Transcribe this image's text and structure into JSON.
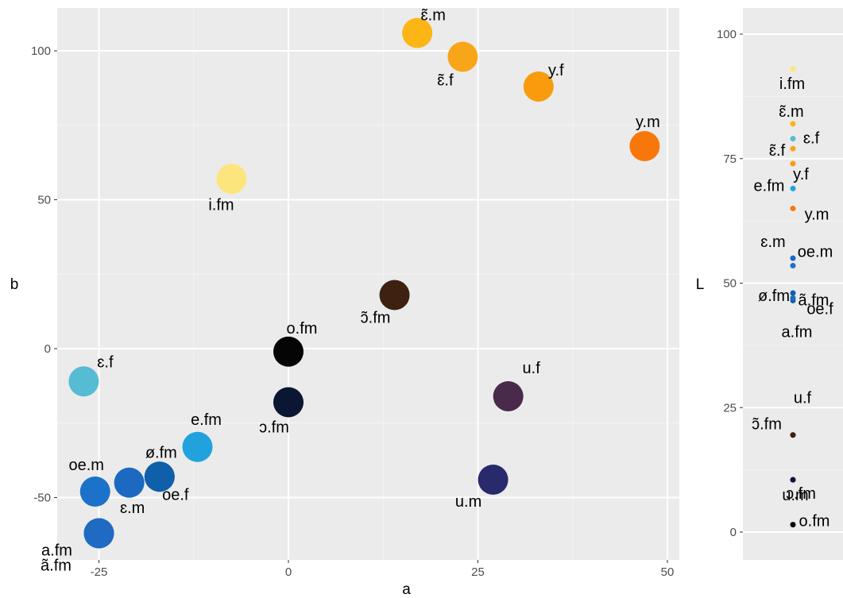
{
  "chart_data": [
    {
      "type": "scatter",
      "xlabel": "a",
      "ylabel": "b",
      "xlim": [
        -30,
        51
      ],
      "ylim": [
        -70,
        115
      ],
      "xticks": [
        -25,
        0,
        25,
        50
      ],
      "yticks": [
        -50,
        0,
        50,
        100
      ],
      "xtick_labels": [
        "-25",
        "0",
        "25",
        "50"
      ],
      "ytick_labels": [
        "-50",
        "0",
        "50",
        "100"
      ],
      "grid": true,
      "legend": "none",
      "points": [
        {
          "label": "ɛ̃.m",
          "x": 17,
          "y": 106,
          "color": "#FBB515"
        },
        {
          "label": "ɛ̃.f",
          "x": 23,
          "y": 98,
          "color": "#F9A51A"
        },
        {
          "label": "y.f",
          "x": 33,
          "y": 88,
          "color": "#F89C0E"
        },
        {
          "label": "y.m",
          "x": 47,
          "y": 68,
          "color": "#F7770B"
        },
        {
          "label": "i.fm",
          "x": -7.5,
          "y": 57,
          "color": "#FDE57E"
        },
        {
          "label": "ɔ̃.fm",
          "x": 14,
          "y": 18,
          "color": "#3E2111"
        },
        {
          "label": "o.fm",
          "x": 0,
          "y": -1,
          "color": "#050505"
        },
        {
          "label": "ɔ.fm",
          "x": 0,
          "y": -18,
          "color": "#0B1633"
        },
        {
          "label": "ɛ.f",
          "x": -27,
          "y": -11,
          "color": "#56BCD3"
        },
        {
          "label": "u.f",
          "x": 29,
          "y": -16,
          "color": "#4A2A4B"
        },
        {
          "label": "e.fm",
          "x": -12,
          "y": -33,
          "color": "#22A2DD"
        },
        {
          "label": "u.m",
          "x": 27,
          "y": -44,
          "color": "#282A6B"
        },
        {
          "label": "ø.fm",
          "x": -17,
          "y": -43,
          "color": "#0F5FAA"
        },
        {
          "label": "oe.m",
          "x": -25.5,
          "y": -48,
          "color": "#1C72C8"
        },
        {
          "label": "ɛ.m",
          "x": -21,
          "y": -45,
          "color": "#1B69C1"
        },
        {
          "label": "oe.f",
          "x": -17,
          "y": -43,
          "color": "#0F5FAA"
        },
        {
          "label": "ã.fm",
          "x": -25,
          "y": -62,
          "color": "#1F6AC3"
        },
        {
          "label": "a.fm",
          "x": -25,
          "y": -62,
          "color": "#1F6AC3"
        }
      ]
    },
    {
      "type": "scatter",
      "xlabel": "",
      "ylabel": "L",
      "ylim": [
        -5,
        105
      ],
      "yticks": [
        0,
        25,
        50,
        75,
        100
      ],
      "ytick_labels": [
        "0",
        "25",
        "50",
        "75",
        "100"
      ],
      "grid": true,
      "legend": "none",
      "points": [
        {
          "label": "i.fm",
          "y": 93,
          "color": "#FDE57E"
        },
        {
          "label": "ɛ̃.m",
          "y": 82,
          "color": "#FBB515"
        },
        {
          "label": "ɛ.f",
          "y": 79,
          "color": "#56BCD3"
        },
        {
          "label": "ɛ̃.f",
          "y": 77,
          "color": "#F9A51A"
        },
        {
          "label": "y.f",
          "y": 74,
          "color": "#F89C0E"
        },
        {
          "label": "e.fm",
          "y": 69,
          "color": "#22A2DD"
        },
        {
          "label": "y.m",
          "y": 65,
          "color": "#F7770B"
        },
        {
          "label": "ɛ.m",
          "y": 55,
          "color": "#1B69C1"
        },
        {
          "label": "oe.m",
          "y": 53.5,
          "color": "#1C72C8"
        },
        {
          "label": "ø.fm",
          "y": 48,
          "color": "#0F5FAA"
        },
        {
          "label": "ã.fm",
          "y": 47,
          "color": "#1F6AC3"
        },
        {
          "label": "oe.f",
          "y": 46.5,
          "color": "#0F5FAA"
        },
        {
          "label": "a.fm",
          "y": 47,
          "color": "#1F6AC3"
        },
        {
          "label": "u.f",
          "y": 19.5,
          "color": "#4A2A4B"
        },
        {
          "label": "ɔ̃.fm",
          "y": 19.5,
          "color": "#3E2111"
        },
        {
          "label": "u.m",
          "y": 10.5,
          "color": "#282A6B"
        },
        {
          "label": "ɔ.fm",
          "y": 10.5,
          "color": "#0B1633"
        },
        {
          "label": "o.fm",
          "y": 1.5,
          "color": "#050505"
        }
      ]
    }
  ]
}
